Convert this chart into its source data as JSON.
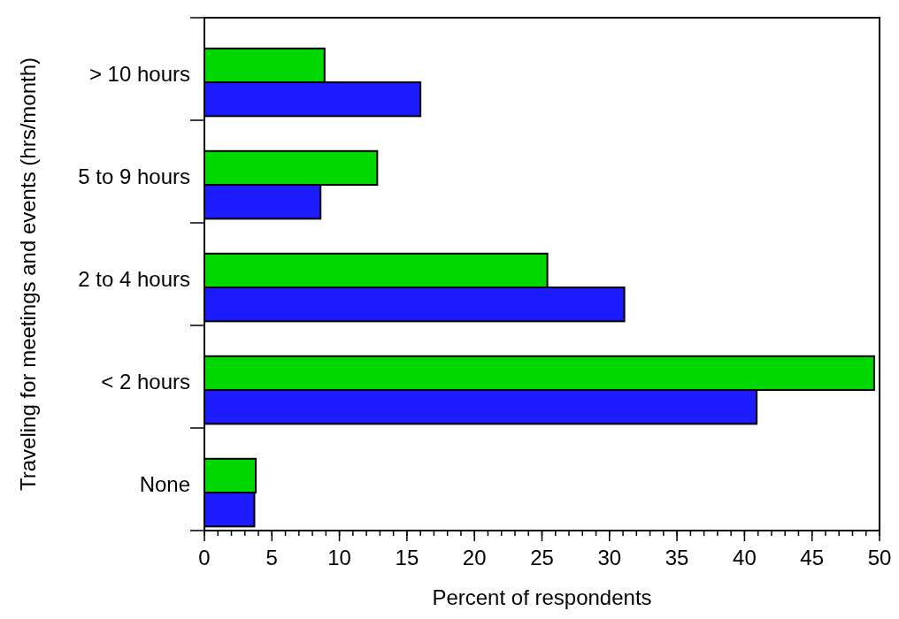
{
  "chart_data": {
    "type": "bar",
    "orientation": "horizontal",
    "xlabel": "Percent of respondents",
    "ylabel": "Traveling for meetings and events (hrs/month)",
    "categories": [
      "> 10 hours",
      "5 to 9 hours",
      "2 to 4 hours",
      "< 2 hours",
      "None"
    ],
    "series": [
      {
        "color": "#00d800",
        "values": [
          8.9,
          12.8,
          25.4,
          49.6,
          3.8
        ]
      },
      {
        "color": "#1c1cff",
        "values": [
          16.0,
          8.6,
          31.1,
          40.9,
          3.7
        ]
      }
    ],
    "xlim": [
      0,
      50
    ],
    "xticks": [
      0,
      5,
      10,
      15,
      20,
      25,
      30,
      35,
      40,
      45,
      50
    ],
    "grid": false
  }
}
